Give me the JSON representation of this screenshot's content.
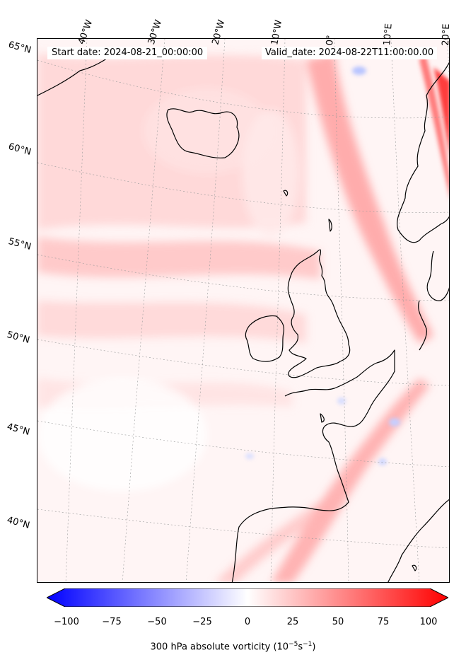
{
  "header": {
    "start_date": "Start date: 2024-08-21_00:00:00",
    "valid_date": "Valid_date: 2024-08-22T11:00:00.00"
  },
  "axes": {
    "lon_labels": [
      "40°W",
      "30°W",
      "20°W",
      "10°W",
      "0°",
      "10°E",
      "20°E"
    ],
    "lat_labels": [
      "65°N",
      "60°N",
      "55°N",
      "50°N",
      "45°N",
      "40°N"
    ]
  },
  "colorbar": {
    "ticks": [
      "−100",
      "−75",
      "−50",
      "−25",
      "0",
      "25",
      "50",
      "75",
      "100"
    ],
    "label": "300 hPa absolute vorticity (10",
    "label_exp1": "−5",
    "label_mid": "s",
    "label_exp2": "−1",
    "label_end": ")",
    "range": [
      -100,
      100
    ],
    "colors": {
      "negative": "#0000ff",
      "zero": "#ffffff",
      "positive": "#ff0000"
    }
  },
  "map": {
    "field": "300 hPa absolute vorticity",
    "colormap": "bwr",
    "region": "North Atlantic and Western Europe"
  }
}
